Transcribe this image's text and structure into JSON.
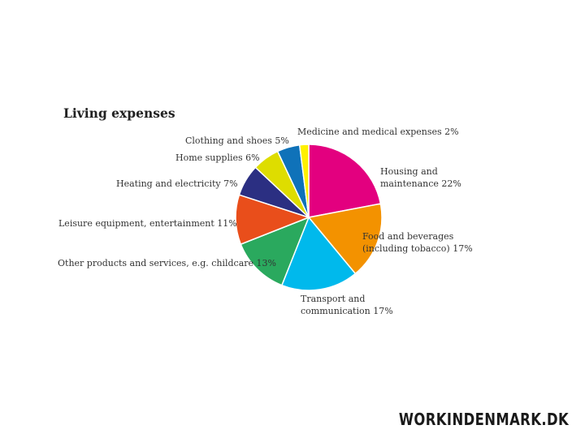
{
  "chart_data": {
    "type": "pie",
    "title": "Living expenses",
    "colors": [
      "#e3007f",
      "#f39200",
      "#00b9ec",
      "#2aa95e",
      "#e94e1b",
      "#2b2f82",
      "#dedd00",
      "#0f72b9",
      "#fff100"
    ],
    "slices": [
      {
        "label_lines": [
          "Housing and",
          "maintenance 22%"
        ],
        "value": 22
      },
      {
        "label_lines": [
          "Food and beverages",
          "(including tobacco) 17%"
        ],
        "value": 17
      },
      {
        "label_lines": [
          "Transport and",
          "communication 17%"
        ],
        "value": 17
      },
      {
        "label_lines": [
          "Other products and services, e.g. childcare 13%"
        ],
        "value": 13
      },
      {
        "label_lines": [
          "Leisure equipment, entertainment 11%"
        ],
        "value": 11
      },
      {
        "label_lines": [
          "Heating and electricity 7%"
        ],
        "value": 7
      },
      {
        "label_lines": [
          "Home supplies 6%"
        ],
        "value": 6
      },
      {
        "label_lines": [
          "Clothing and shoes 5%"
        ],
        "value": 5
      },
      {
        "label_lines": [
          "Medicine and medical expenses 2%"
        ],
        "value": 2
      }
    ]
  },
  "brand": {
    "text": "WORKINDENMARK.DK"
  }
}
